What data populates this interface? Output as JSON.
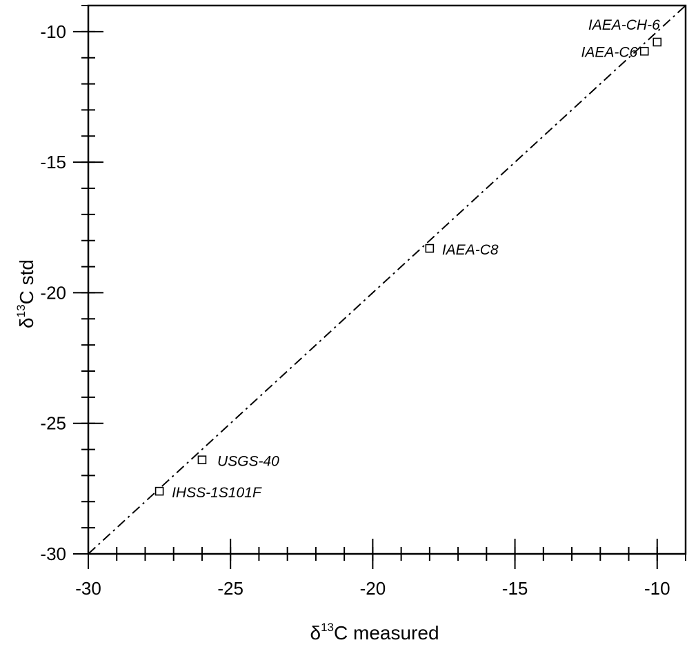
{
  "chart_data": {
    "type": "scatter",
    "title": "",
    "xlabel": {
      "prefix": "δ",
      "sup": "13",
      "suffix": "C measured"
    },
    "ylabel": {
      "prefix": "δ",
      "sup": "13",
      "suffix": "C std"
    },
    "xlim": [
      -30,
      -9
    ],
    "ylim": [
      -30,
      -9
    ],
    "x_ticks": [
      -30,
      -25,
      -20,
      -15,
      -10
    ],
    "y_ticks": [
      -30,
      -25,
      -20,
      -15,
      -10
    ],
    "x_tick_labels": [
      "-30",
      "-25",
      "-20",
      "-15",
      "-10"
    ],
    "y_tick_labels": [
      "-30",
      "-25",
      "-20",
      "-15",
      "-10"
    ],
    "minor_tick_step": 1,
    "grid": false,
    "line": {
      "style": "dash-dot",
      "x": [
        -30,
        -9
      ],
      "y": [
        -30,
        -9
      ]
    },
    "points": [
      {
        "label": "IAEA-CH-6",
        "x": -10.0,
        "y": -10.4
      },
      {
        "label": "IAEA-C6",
        "x": -10.45,
        "y": -10.75
      },
      {
        "label": "IAEA-C8",
        "x": -18.0,
        "y": -18.3
      },
      {
        "label": "USGS-40",
        "x": -26.0,
        "y": -26.4
      },
      {
        "label": "IHSS-1S101F",
        "x": -27.5,
        "y": -27.6
      }
    ]
  }
}
